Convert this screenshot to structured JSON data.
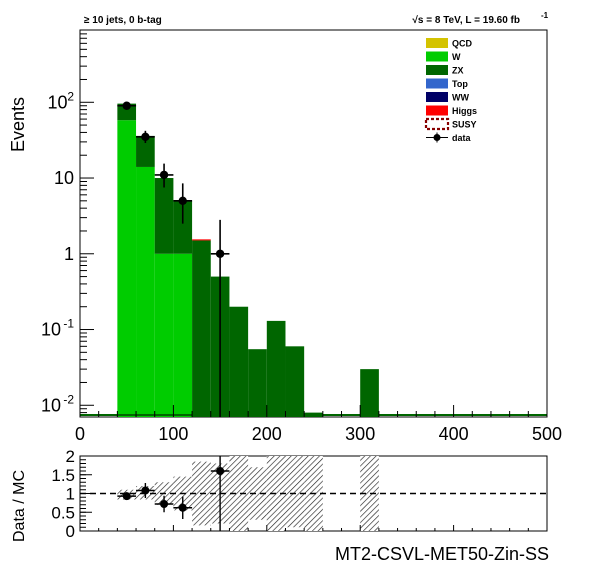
{
  "chart_data": [
    {
      "type": "bar",
      "subtype": "stacked-histogram",
      "title_left": "≥ 10 jets, 0 b-tag",
      "title_right": "√s = 8 TeV, L = 19.60 fb",
      "title_right_sup": "-1",
      "ylabel": "Events",
      "xlabel": "",
      "xlim": [
        0,
        500
      ],
      "ylim": [
        0.007,
        900
      ],
      "yscale": "log",
      "x_ticks": [
        "0",
        "100",
        "200",
        "300",
        "400",
        "500"
      ],
      "y_ticks": [
        {
          "value": 0.01,
          "base": "10",
          "exp": "-2"
        },
        {
          "value": 0.1,
          "base": "10",
          "exp": "-1"
        },
        {
          "value": 1,
          "base": "1",
          "exp": ""
        },
        {
          "value": 10,
          "base": "10",
          "exp": ""
        },
        {
          "value": 100,
          "base": "10",
          "exp": "2"
        }
      ],
      "bin_edges": [
        0,
        20,
        40,
        60,
        80,
        100,
        120,
        140,
        160,
        180,
        200,
        220,
        240,
        260,
        280,
        300,
        320,
        340,
        360,
        380,
        400,
        420,
        440,
        460,
        480,
        500
      ],
      "series": [
        {
          "name": "QCD",
          "color": "#d4c300",
          "values": [
            0,
            0,
            0,
            0,
            0,
            0,
            0,
            0,
            0,
            0,
            0,
            0,
            0,
            0,
            0,
            0,
            0,
            0,
            0,
            0,
            0,
            0,
            0,
            0,
            0
          ]
        },
        {
          "name": "W",
          "color": "#00cc00",
          "values": [
            0,
            0,
            58,
            14,
            1,
            1,
            0,
            0,
            0,
            0,
            0,
            0,
            0,
            0,
            0,
            0,
            0,
            0,
            0,
            0,
            0,
            0,
            0,
            0,
            0
          ]
        },
        {
          "name": "ZX",
          "color": "#006600",
          "values": [
            0,
            0,
            38,
            22,
            9,
            4,
            1.5,
            0.5,
            0.2,
            0.055,
            0.13,
            0.06,
            0.008,
            0,
            0,
            0.03,
            0,
            0,
            0,
            0,
            0,
            0,
            0,
            0,
            0
          ]
        },
        {
          "name": "Top",
          "color": "#3366cc",
          "values": [
            0,
            0,
            0,
            0,
            0,
            0,
            0,
            0,
            0,
            0,
            0,
            0,
            0,
            0,
            0,
            0,
            0,
            0,
            0,
            0,
            0,
            0,
            0,
            0,
            0
          ]
        },
        {
          "name": "WW",
          "color": "#000066",
          "values": [
            0,
            0,
            0,
            0,
            0,
            0,
            0,
            0,
            0,
            0,
            0,
            0,
            0,
            0,
            0,
            0,
            0,
            0,
            0,
            0,
            0,
            0,
            0,
            0,
            0
          ]
        },
        {
          "name": "Higgs",
          "color": "#ff0000",
          "values": [
            0,
            0,
            0,
            0,
            0,
            0,
            0.05,
            0,
            0,
            0,
            0,
            0,
            0,
            0,
            0,
            0,
            0,
            0,
            0,
            0,
            0,
            0,
            0,
            0,
            0
          ]
        },
        {
          "name": "SUSY",
          "color": "#880000",
          "style": "dashed-outline",
          "values": []
        }
      ],
      "data": {
        "name": "data",
        "points": [
          {
            "x": 50,
            "y": 90,
            "err_low": 9,
            "err_high": 10
          },
          {
            "x": 70,
            "y": 35,
            "err_low": 6,
            "err_high": 7
          },
          {
            "x": 90,
            "y": 11,
            "err_low": 3.5,
            "err_high": 4.5
          },
          {
            "x": 110,
            "y": 5,
            "err_low": 2.5,
            "err_high": 3.5
          },
          {
            "x": 150,
            "y": 1,
            "err_low": 1,
            "err_high": 1.8
          }
        ]
      },
      "legend_position": "top-right"
    },
    {
      "type": "scatter",
      "subtype": "ratio",
      "ylabel": "Data / MC",
      "xlabel": "MT2-CSVL-MET50-Zin-SS",
      "xlim": [
        0,
        500
      ],
      "ylim": [
        0,
        2
      ],
      "y_ticks": [
        "0",
        "0.5",
        "1",
        "1.5",
        "2"
      ],
      "reference_line": 1,
      "points": [
        {
          "x": 50,
          "y": 0.93,
          "err": 0.1
        },
        {
          "x": 70,
          "y": 1.08,
          "err": 0.2
        },
        {
          "x": 90,
          "y": 0.72,
          "err": 0.22
        },
        {
          "x": 110,
          "y": 0.62,
          "err": 0.3
        },
        {
          "x": 150,
          "y": 1.6,
          "err": 1.6
        }
      ],
      "uncertainty_bands": [
        {
          "x0": 40,
          "x1": 60,
          "lo": 0.84,
          "hi": 1.1
        },
        {
          "x0": 60,
          "x1": 80,
          "lo": 0.84,
          "hi": 1.2
        },
        {
          "x0": 80,
          "x1": 100,
          "lo": 0.7,
          "hi": 1.3
        },
        {
          "x0": 100,
          "x1": 120,
          "lo": 0.55,
          "hi": 1.45
        },
        {
          "x0": 120,
          "x1": 140,
          "lo": 0.15,
          "hi": 1.85
        },
        {
          "x0": 140,
          "x1": 160,
          "lo": 0.2,
          "hi": 1.8
        },
        {
          "x0": 160,
          "x1": 180,
          "lo": 0,
          "hi": 2
        },
        {
          "x0": 180,
          "x1": 200,
          "lo": 0.3,
          "hi": 1.7
        },
        {
          "x0": 200,
          "x1": 220,
          "lo": 0,
          "hi": 2
        },
        {
          "x0": 220,
          "x1": 240,
          "lo": 0.1,
          "hi": 2
        },
        {
          "x0": 240,
          "x1": 260,
          "lo": 0,
          "hi": 2
        },
        {
          "x0": 300,
          "x1": 320,
          "lo": 0,
          "hi": 2
        }
      ]
    }
  ]
}
